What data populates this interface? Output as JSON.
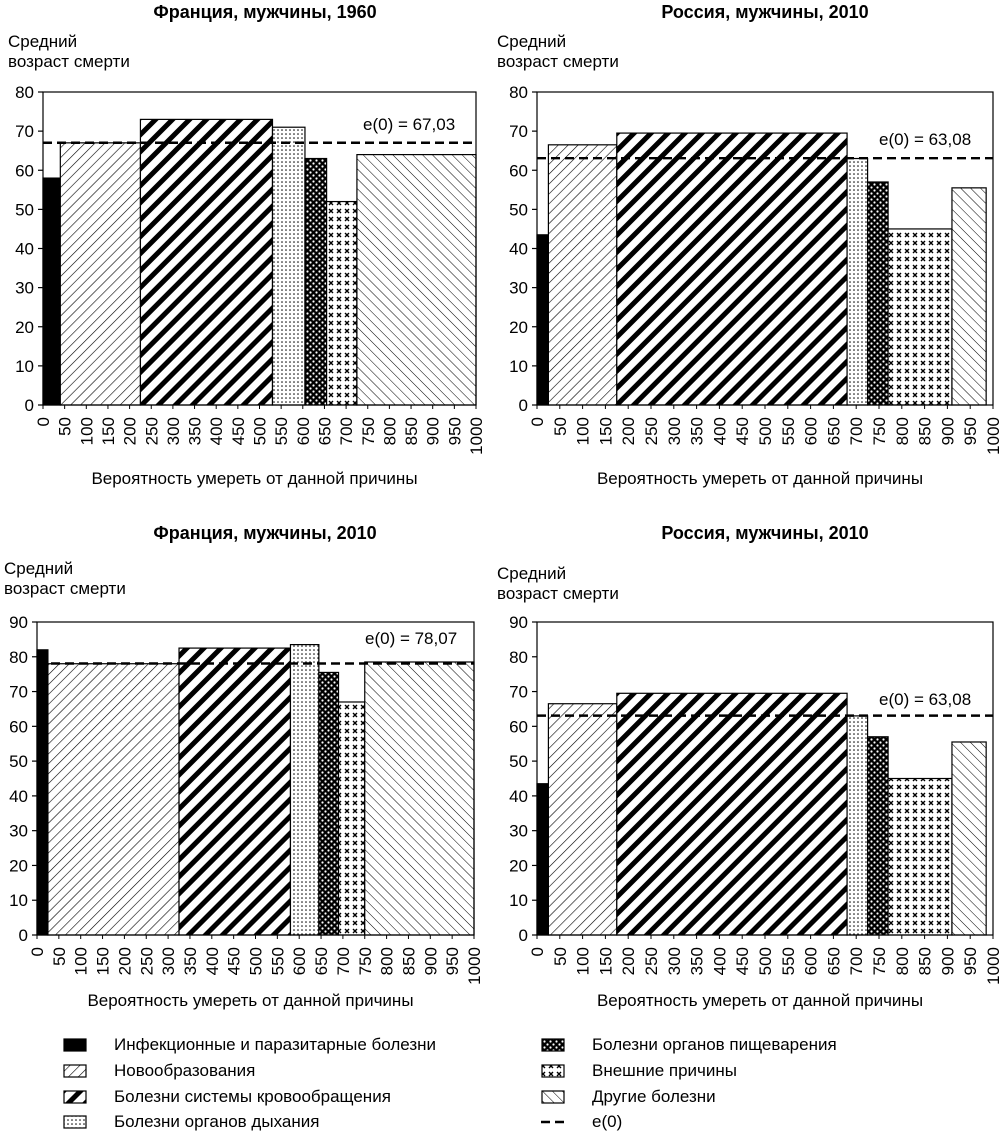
{
  "chart_data": [
    {
      "type": "bar",
      "title": "Франция, мужчины, 1960",
      "ylabel": [
        "Средний",
        "возраст смерти"
      ],
      "xlabel": "Вероятность умереть от данной причины",
      "ylim": [
        0,
        80
      ],
      "yticks": [
        0,
        10,
        20,
        30,
        40,
        50,
        60,
        70,
        80
      ],
      "xlim": [
        0,
        1000
      ],
      "xticks": [
        0,
        50,
        100,
        150,
        200,
        250,
        300,
        350,
        400,
        450,
        500,
        550,
        600,
        650,
        700,
        750,
        800,
        850,
        900,
        950,
        1000
      ],
      "e0": 67.03,
      "e0_label": "e(0) = 67,03",
      "bars": [
        {
          "cause": "infectious",
          "x_start": 0,
          "x_end": 40,
          "value": 58
        },
        {
          "cause": "neoplasms",
          "x_start": 40,
          "x_end": 225,
          "value": 67
        },
        {
          "cause": "circulatory",
          "x_start": 225,
          "x_end": 530,
          "value": 73
        },
        {
          "cause": "respiratory",
          "x_start": 530,
          "x_end": 605,
          "value": 71
        },
        {
          "cause": "digestive",
          "x_start": 605,
          "x_end": 655,
          "value": 63
        },
        {
          "cause": "external",
          "x_start": 655,
          "x_end": 725,
          "value": 52
        },
        {
          "cause": "other",
          "x_start": 725,
          "x_end": 1000,
          "value": 64
        }
      ]
    },
    {
      "type": "bar",
      "title": "Россия, мужчины, 2010",
      "ylabel": [
        "Средний",
        "возраст смерти"
      ],
      "xlabel": "Вероятность умереть от данной причины",
      "ylim": [
        0,
        80
      ],
      "yticks": [
        0,
        10,
        20,
        30,
        40,
        50,
        60,
        70,
        80
      ],
      "xlim": [
        0,
        1000
      ],
      "xticks": [
        0,
        50,
        100,
        150,
        200,
        250,
        300,
        350,
        400,
        450,
        500,
        550,
        600,
        650,
        700,
        750,
        800,
        850,
        900,
        950,
        1000
      ],
      "e0": 63.08,
      "e0_label": "e(0) = 63,08",
      "bars": [
        {
          "cause": "infectious",
          "x_start": 0,
          "x_end": 25,
          "value": 43.5
        },
        {
          "cause": "neoplasms",
          "x_start": 25,
          "x_end": 175,
          "value": 66.5
        },
        {
          "cause": "circulatory",
          "x_start": 175,
          "x_end": 680,
          "value": 69.5
        },
        {
          "cause": "respiratory",
          "x_start": 680,
          "x_end": 725,
          "value": 63
        },
        {
          "cause": "digestive",
          "x_start": 725,
          "x_end": 770,
          "value": 57
        },
        {
          "cause": "external",
          "x_start": 770,
          "x_end": 910,
          "value": 45
        },
        {
          "cause": "other",
          "x_start": 910,
          "x_end": 985,
          "value": 55.5
        }
      ]
    },
    {
      "type": "bar",
      "title": "Франция, мужчины, 2010",
      "ylabel": [
        "Средний",
        "возраст смерти"
      ],
      "xlabel": "Вероятность умереть от данной причины",
      "ylim": [
        0,
        90
      ],
      "yticks": [
        0,
        10,
        20,
        30,
        40,
        50,
        60,
        70,
        80,
        90
      ],
      "xlim": [
        0,
        1000
      ],
      "xticks": [
        0,
        50,
        100,
        150,
        200,
        250,
        300,
        350,
        400,
        450,
        500,
        550,
        600,
        650,
        700,
        750,
        800,
        850,
        900,
        950,
        1000
      ],
      "e0": 78.07,
      "e0_label": "e(0) = 78,07",
      "bars": [
        {
          "cause": "infectious",
          "x_start": 0,
          "x_end": 25,
          "value": 82
        },
        {
          "cause": "neoplasms",
          "x_start": 25,
          "x_end": 325,
          "value": 78
        },
        {
          "cause": "circulatory",
          "x_start": 325,
          "x_end": 580,
          "value": 82.5
        },
        {
          "cause": "respiratory",
          "x_start": 580,
          "x_end": 645,
          "value": 83.5
        },
        {
          "cause": "digestive",
          "x_start": 645,
          "x_end": 690,
          "value": 75.5
        },
        {
          "cause": "external",
          "x_start": 690,
          "x_end": 750,
          "value": 67
        },
        {
          "cause": "other",
          "x_start": 750,
          "x_end": 1000,
          "value": 78.5
        }
      ]
    },
    {
      "type": "bar",
      "title": "Россия, мужчины, 2010",
      "ylabel": [
        "Средний",
        "возраст смерти"
      ],
      "xlabel": "Вероятность умереть от данной причины",
      "ylim": [
        0,
        90
      ],
      "yticks": [
        0,
        10,
        20,
        30,
        40,
        50,
        60,
        70,
        80,
        90
      ],
      "xlim": [
        0,
        1000
      ],
      "xticks": [
        0,
        50,
        100,
        150,
        200,
        250,
        300,
        350,
        400,
        450,
        500,
        550,
        600,
        650,
        700,
        750,
        800,
        850,
        900,
        950,
        1000
      ],
      "e0": 63.08,
      "e0_label": "e(0) = 63,08",
      "bars": [
        {
          "cause": "infectious",
          "x_start": 0,
          "x_end": 25,
          "value": 43.5
        },
        {
          "cause": "neoplasms",
          "x_start": 25,
          "x_end": 175,
          "value": 66.5
        },
        {
          "cause": "circulatory",
          "x_start": 175,
          "x_end": 680,
          "value": 69.5
        },
        {
          "cause": "respiratory",
          "x_start": 680,
          "x_end": 725,
          "value": 63
        },
        {
          "cause": "digestive",
          "x_start": 725,
          "x_end": 770,
          "value": 57
        },
        {
          "cause": "external",
          "x_start": 770,
          "x_end": 910,
          "value": 45
        },
        {
          "cause": "other",
          "x_start": 910,
          "x_end": 985,
          "value": 55.5
        }
      ]
    }
  ],
  "legend": [
    {
      "cause": "infectious",
      "label": "Инфекционные и паразитарные болезни"
    },
    {
      "cause": "neoplasms",
      "label": "Новообразования"
    },
    {
      "cause": "circulatory",
      "label": "Болезни системы кровообращения"
    },
    {
      "cause": "respiratory",
      "label": "Болезни органов дыхания"
    },
    {
      "cause": "digestive",
      "label": "Болезни органов пищеварения"
    },
    {
      "cause": "external",
      "label": "Внешние причины"
    },
    {
      "cause": "other",
      "label": "Другие болезни"
    },
    {
      "cause": "e0",
      "label": "e(0)"
    }
  ]
}
